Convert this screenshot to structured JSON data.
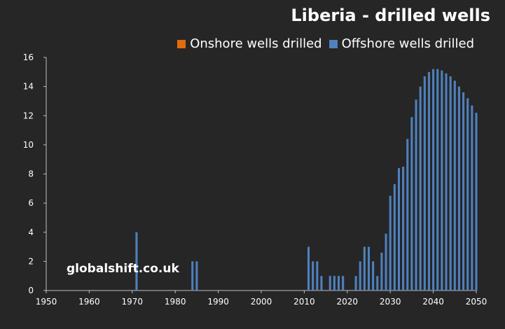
{
  "colors": {
    "background": "#262626",
    "axis": "#bfbfbf",
    "text": "#ffffff"
  },
  "watermark": "globalshift.co.uk",
  "chart_data": {
    "type": "bar",
    "stacked": true,
    "title": "Liberia - drilled wells",
    "xlabel": "",
    "ylabel": "",
    "xlim": [
      1950,
      2050
    ],
    "ylim": [
      0,
      16
    ],
    "x_ticks": [
      "1950",
      "1960",
      "1970",
      "1980",
      "1990",
      "2000",
      "2010",
      "2020",
      "2030",
      "2040",
      "2050"
    ],
    "y_ticks": [
      "0",
      "2",
      "4",
      "6",
      "8",
      "10",
      "12",
      "14",
      "16"
    ],
    "grid": false,
    "legend_position": "top-right",
    "x": [
      1971,
      1984,
      1985,
      2011,
      2012,
      2013,
      2014,
      2016,
      2017,
      2018,
      2019,
      2022,
      2023,
      2024,
      2025,
      2026,
      2027,
      2028,
      2029,
      2030,
      2031,
      2032,
      2033,
      2034,
      2035,
      2036,
      2037,
      2038,
      2039,
      2040,
      2041,
      2042,
      2043,
      2044,
      2045,
      2046,
      2047,
      2048,
      2049,
      2050
    ],
    "series": [
      {
        "name": "Onshore wells drilled",
        "color": "#e46c0a",
        "values": [
          0,
          0,
          0,
          0,
          0,
          0,
          0,
          0,
          0,
          0,
          0,
          0,
          0,
          0,
          0,
          0,
          0,
          0,
          0,
          0,
          0,
          0,
          0,
          0,
          0,
          0,
          0,
          0,
          0,
          0,
          0,
          0,
          0,
          0,
          0,
          0,
          0,
          0,
          0,
          0
        ]
      },
      {
        "name": "Offshore wells drilled",
        "color": "#4f81bd",
        "values": [
          4,
          2,
          2,
          3,
          2,
          2,
          1,
          1,
          1,
          1,
          1,
          1,
          2,
          3,
          3,
          2,
          1,
          2.6,
          3.9,
          6.5,
          7.3,
          8.4,
          8.5,
          10.4,
          11.9,
          13.1,
          14.0,
          14.7,
          15.0,
          15.2,
          15.2,
          15.1,
          14.9,
          14.7,
          14.4,
          14.0,
          13.6,
          13.2,
          12.7,
          12.2
        ]
      }
    ]
  }
}
